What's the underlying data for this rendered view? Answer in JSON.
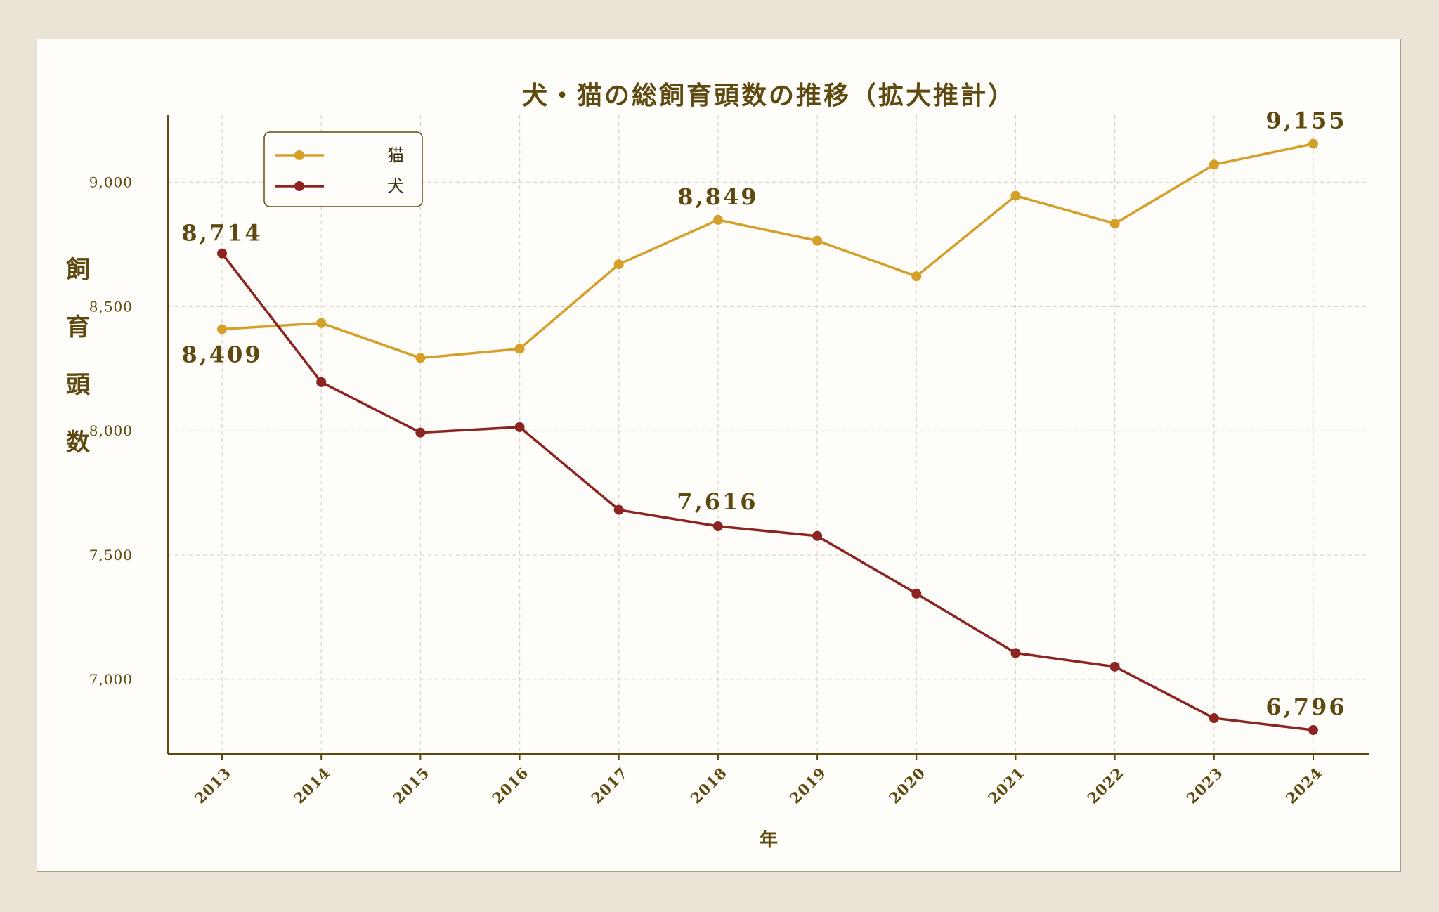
{
  "chart_data": {
    "type": "line",
    "title": "犬・猫の総飼育頭数の推移（拡大推計）",
    "xlabel": "年",
    "ylabel": "飼育頭数",
    "x": [
      "2013",
      "2014",
      "2015",
      "2016",
      "2017",
      "2018",
      "2019",
      "2020",
      "2021",
      "2022",
      "2023",
      "2024"
    ],
    "ylim": [
      6700,
      9270
    ],
    "yticks": [
      7000,
      7500,
      8000,
      8500,
      9000
    ],
    "ytick_labels": [
      "7,000",
      "7,500",
      "8,000",
      "8,500",
      "9,000"
    ],
    "grid": true,
    "legend_position": "top-left",
    "series": [
      {
        "name": "猫",
        "color": "#d4a02a",
        "values": [
          8409,
          8434,
          8293,
          8330,
          8670,
          8849,
          8765,
          8622,
          8946,
          8834,
          9071,
          9155
        ]
      },
      {
        "name": "犬",
        "color": "#8c2421",
        "values": [
          8714,
          8196,
          7993,
          8015,
          7682,
          7616,
          7577,
          7345,
          7106,
          7051,
          6844,
          6796
        ]
      }
    ],
    "annotations": [
      {
        "series": 1,
        "index": 0,
        "text": "8,714"
      },
      {
        "series": 0,
        "index": 0,
        "text": "8,409"
      },
      {
        "series": 0,
        "index": 5,
        "text": "8,849"
      },
      {
        "series": 1,
        "index": 5,
        "text": "7,616"
      },
      {
        "series": 0,
        "index": 11,
        "text": "9,155"
      },
      {
        "series": 1,
        "index": 11,
        "text": "6,796"
      }
    ]
  }
}
